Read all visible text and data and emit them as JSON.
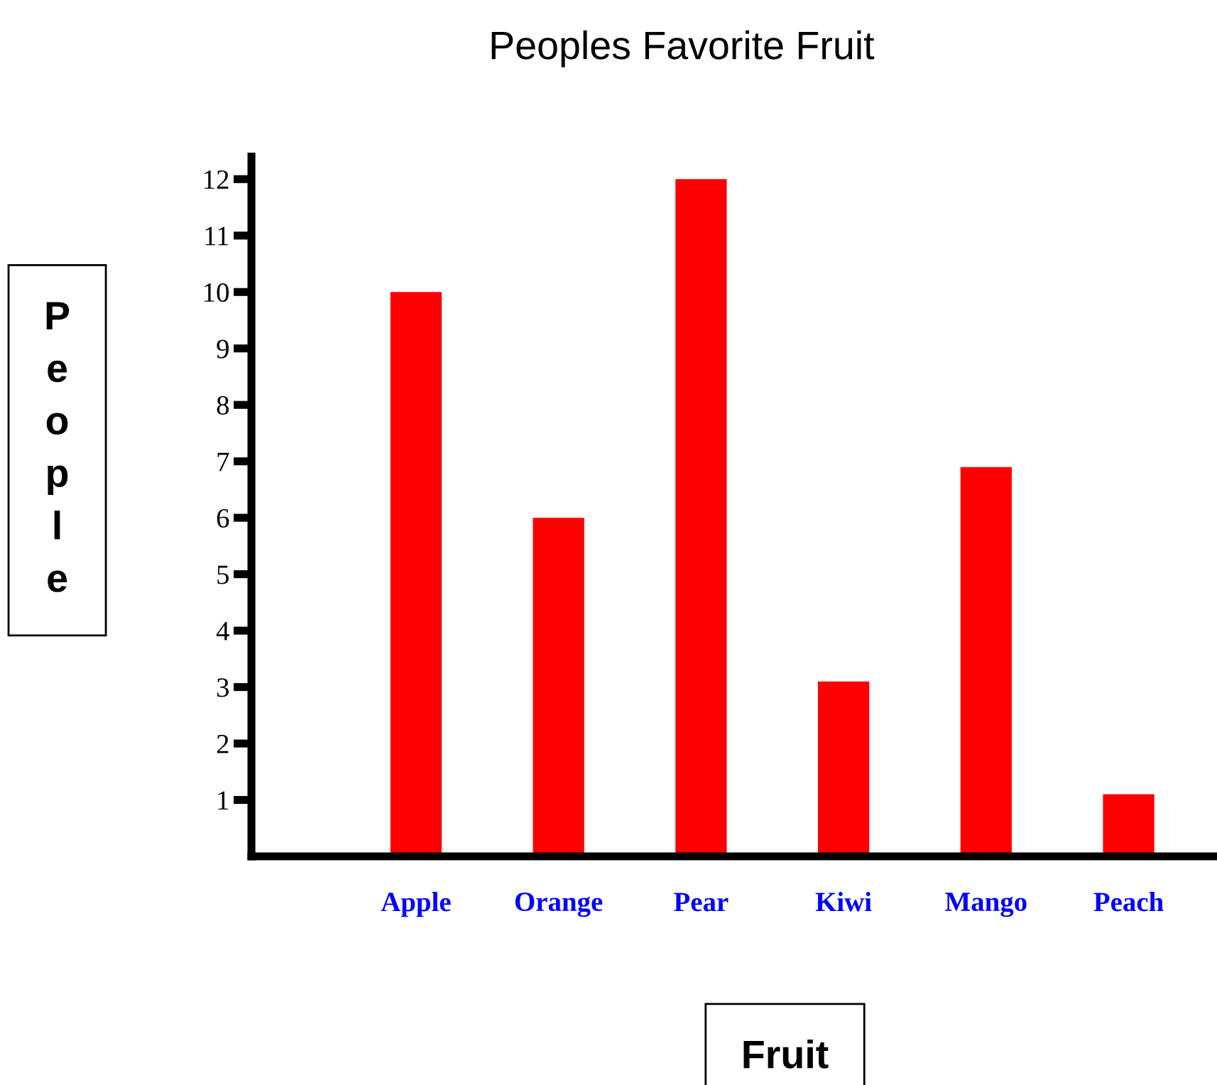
{
  "chart_data": {
    "type": "bar",
    "title": "Peoples Favorite Fruit",
    "xlabel": "Fruit",
    "ylabel": "People",
    "categories": [
      "Apple",
      "Orange",
      "Pear",
      "Kiwi",
      "Mango",
      "Peach"
    ],
    "values": [
      10,
      6,
      12,
      3.1,
      6.9,
      1.1
    ],
    "color": "#ff0000",
    "ylim": [
      0,
      12.4
    ],
    "yticks": [
      1,
      2,
      3,
      4,
      5,
      6,
      7,
      8,
      9,
      10,
      11,
      12
    ],
    "grid": false,
    "legend": false
  }
}
